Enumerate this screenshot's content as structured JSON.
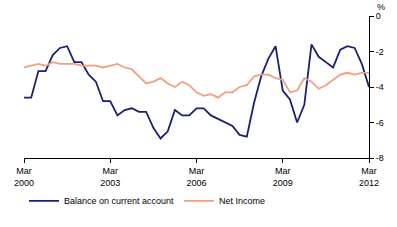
{
  "chart_data": {
    "type": "line",
    "ylabel": "%",
    "categories": [
      "Mar 2000",
      null,
      null,
      null,
      null,
      null,
      null,
      null,
      null,
      null,
      null,
      null,
      "Mar 2003",
      null,
      null,
      null,
      null,
      null,
      null,
      null,
      null,
      null,
      null,
      null,
      "Mar 2006",
      null,
      null,
      null,
      null,
      null,
      null,
      null,
      null,
      null,
      null,
      null,
      "Mar 2009",
      null,
      null,
      null,
      null,
      null,
      null,
      null,
      null,
      null,
      null,
      null,
      "Mar 2012"
    ],
    "series": [
      {
        "name": "Balance on current account",
        "color": "#1b1f73",
        "values": [
          -4.6,
          -4.6,
          -3.1,
          -3.1,
          -2.2,
          -1.8,
          -1.7,
          -2.6,
          -2.6,
          -3.3,
          -3.7,
          -4.8,
          -4.8,
          -5.6,
          -5.3,
          -5.2,
          -5.4,
          -5.4,
          -6.3,
          -6.9,
          -6.5,
          -5.3,
          -5.6,
          -5.6,
          -5.2,
          -5.2,
          -5.6,
          -5.8,
          -6.0,
          -6.2,
          -6.7,
          -6.8,
          -4.9,
          -3.4,
          -2.4,
          -1.7,
          -4.2,
          -4.7,
          -6.0,
          -5.0,
          -1.6,
          -2.3,
          -2.6,
          -2.9,
          -1.9,
          -1.7,
          -1.8,
          -2.7,
          -4.0
        ]
      },
      {
        "name": "Net Income",
        "color": "#f0a07c",
        "values": [
          -2.9,
          -2.8,
          -2.7,
          -2.8,
          -2.6,
          -2.7,
          -2.7,
          -2.7,
          -2.8,
          -2.8,
          -2.8,
          -2.9,
          -2.8,
          -2.7,
          -2.9,
          -3.0,
          -3.4,
          -3.8,
          -3.7,
          -3.5,
          -3.8,
          -4.0,
          -3.7,
          -3.9,
          -4.3,
          -4.5,
          -4.4,
          -4.6,
          -4.3,
          -4.3,
          -4.0,
          -3.9,
          -3.4,
          -3.3,
          -3.3,
          -3.5,
          -3.6,
          -4.3,
          -4.2,
          -3.5,
          -3.7,
          -4.1,
          -3.9,
          -3.6,
          -3.3,
          -3.2,
          -3.3,
          -3.2,
          -3.2
        ]
      }
    ],
    "ylim": [
      -8,
      0
    ],
    "yticks": [
      -8,
      -6,
      -4,
      -2,
      0
    ],
    "grid": false,
    "legend": "bottom"
  }
}
